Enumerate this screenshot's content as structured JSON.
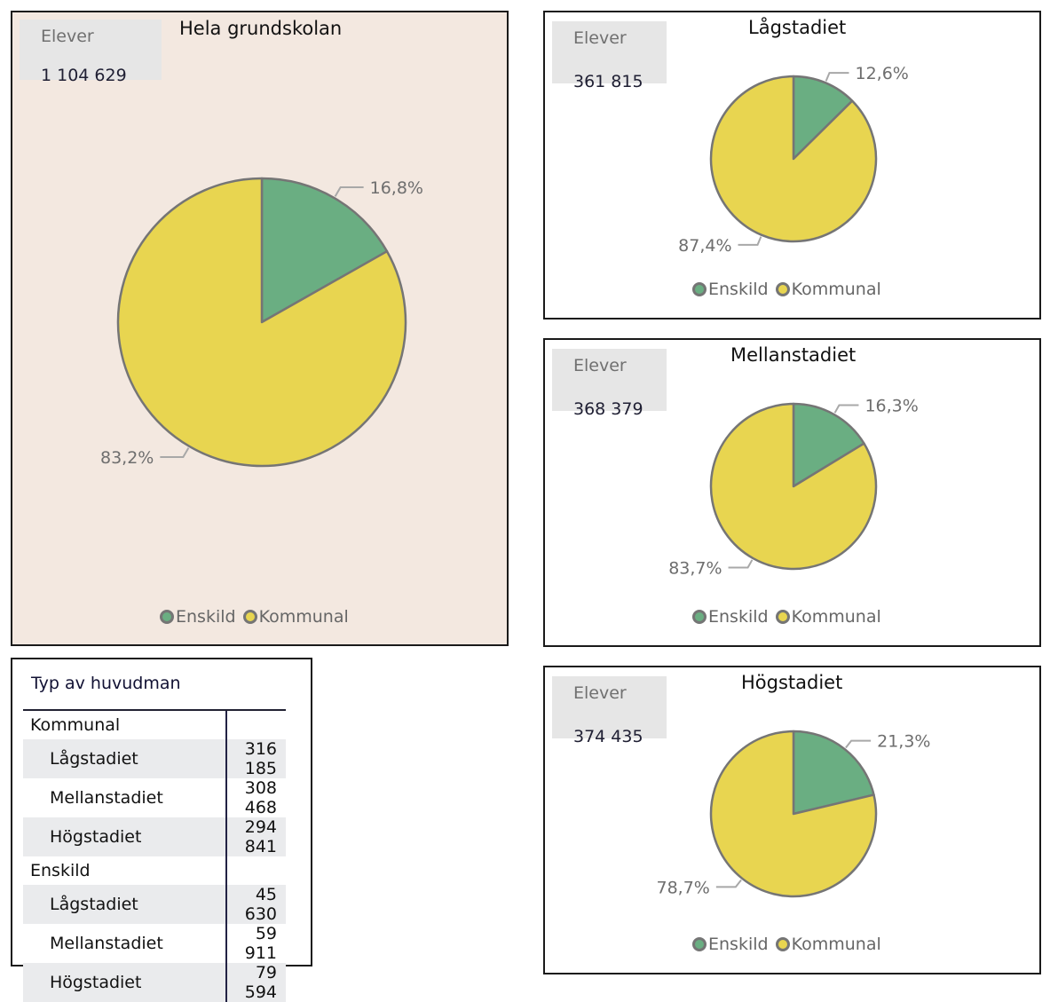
{
  "colors": {
    "enskild": "#6aae82",
    "kommunal": "#e8d550",
    "slice_border": "#757575",
    "main_bg": "#f3e8e0",
    "card_bg": "#e6e6e6",
    "label": "#6e6e6e"
  },
  "legend": [
    {
      "label": "Enskild",
      "color": "#6aae82"
    },
    {
      "label": "Kommunal",
      "color": "#e8d550"
    }
  ],
  "panels": {
    "total": {
      "title": "Hela grundskolan",
      "card_label": "Elever",
      "card_value": "1 104 629"
    },
    "lag": {
      "title": "Lågstadiet",
      "card_label": "Elever",
      "card_value": "361 815"
    },
    "mellan": {
      "title": "Mellanstadiet",
      "card_label": "Elever",
      "card_value": "368 379"
    },
    "hog": {
      "title": "Högstadiet",
      "card_label": "Elever",
      "card_value": "374 435"
    }
  },
  "table": {
    "header": "Typ av huvudman",
    "rows": [
      {
        "label": "Kommunal",
        "value": "",
        "type": "group"
      },
      {
        "label": "Lågstadiet",
        "value": "316 185",
        "type": "sub"
      },
      {
        "label": "Mellanstadiet",
        "value": "308 468",
        "type": "sub"
      },
      {
        "label": "Högstadiet",
        "value": "294 841",
        "type": "sub"
      },
      {
        "label": "Enskild",
        "value": "",
        "type": "group"
      },
      {
        "label": "Lågstadiet",
        "value": "45 630",
        "type": "sub"
      },
      {
        "label": "Mellanstadiet",
        "value": "59 911",
        "type": "sub"
      },
      {
        "label": "Högstadiet",
        "value": "79 594",
        "type": "sub"
      }
    ]
  },
  "chart_data": [
    {
      "type": "pie",
      "title": "Hela grundskolan",
      "categories": [
        "Enskild",
        "Kommunal"
      ],
      "values": [
        16.8,
        83.2
      ],
      "labels": [
        "16,8%",
        "83,2%"
      ],
      "legend": "bottom"
    },
    {
      "type": "pie",
      "title": "Lågstadiet",
      "categories": [
        "Enskild",
        "Kommunal"
      ],
      "values": [
        12.6,
        87.4
      ],
      "labels": [
        "12,6%",
        "87,4%"
      ],
      "legend": "bottom"
    },
    {
      "type": "pie",
      "title": "Mellanstadiet",
      "categories": [
        "Enskild",
        "Kommunal"
      ],
      "values": [
        16.3,
        83.7
      ],
      "labels": [
        "16,3%",
        "83,7%"
      ],
      "legend": "bottom"
    },
    {
      "type": "pie",
      "title": "Högstadiet",
      "categories": [
        "Enskild",
        "Kommunal"
      ],
      "values": [
        21.3,
        78.7
      ],
      "labels": [
        "21,3%",
        "78,7%"
      ],
      "legend": "bottom"
    }
  ]
}
